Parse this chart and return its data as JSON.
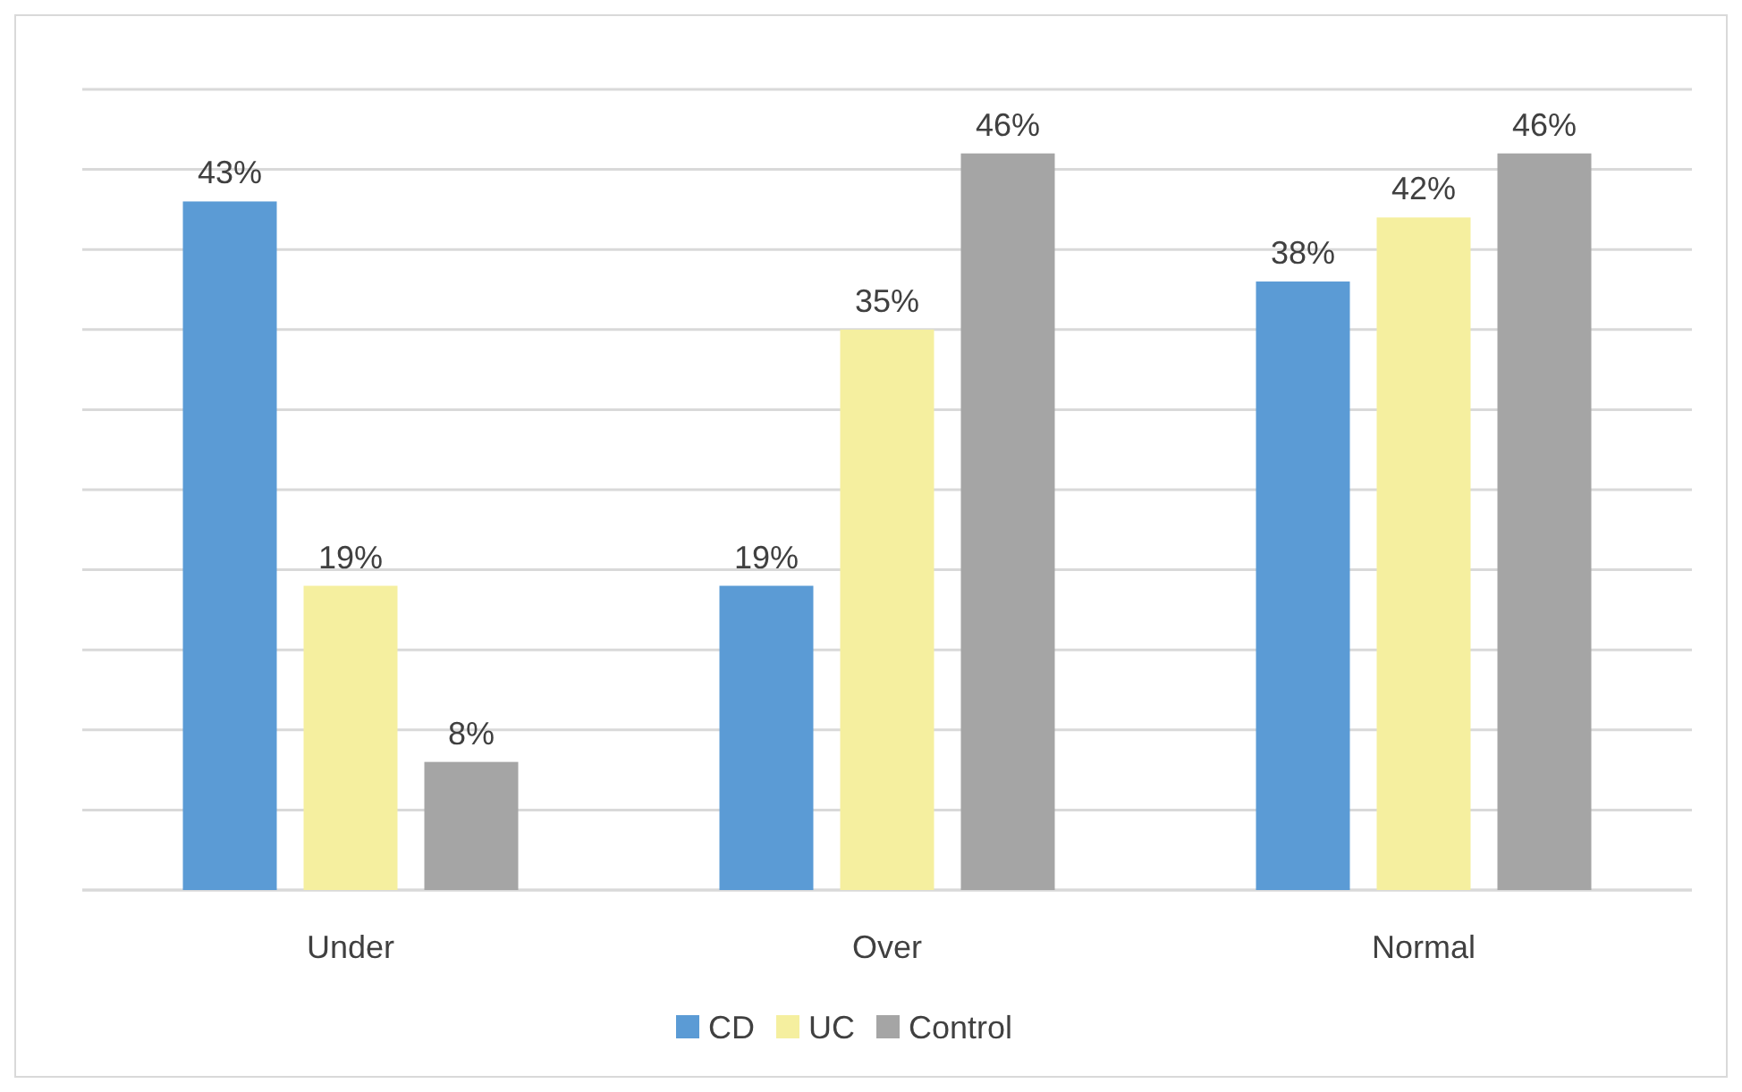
{
  "chart_data": {
    "type": "bar",
    "categories": [
      "Under",
      "Over",
      "Normal"
    ],
    "series": [
      {
        "name": "CD",
        "color": "#5b9bd5",
        "values": [
          43,
          19,
          38
        ],
        "value_labels": [
          "43%",
          "19%",
          "38%"
        ]
      },
      {
        "name": "UC",
        "color": "#f5ef9f",
        "values": [
          19,
          35,
          42
        ],
        "value_labels": [
          "19%",
          "35%",
          "42%"
        ]
      },
      {
        "name": "Control",
        "color": "#a5a5a5",
        "values": [
          8,
          46,
          46
        ],
        "value_labels": [
          "8%",
          "46%",
          "46%"
        ]
      }
    ],
    "ylim": [
      0,
      50
    ],
    "yticks": [
      {
        "value": 0,
        "label": null
      },
      {
        "value": 5,
        "label": null
      },
      {
        "value": 10,
        "label": null
      },
      {
        "value": 15,
        "label": null
      },
      {
        "value": 20,
        "label": null
      },
      {
        "value": 25,
        "label": null
      },
      {
        "value": 30,
        "label": null
      },
      {
        "value": 35,
        "label": null
      },
      {
        "value": 40,
        "label": null
      },
      {
        "value": 45,
        "label": null
      },
      {
        "value": 50,
        "label": null
      }
    ],
    "tick_labels": "x",
    "grid": "y",
    "legend": "bottom"
  }
}
